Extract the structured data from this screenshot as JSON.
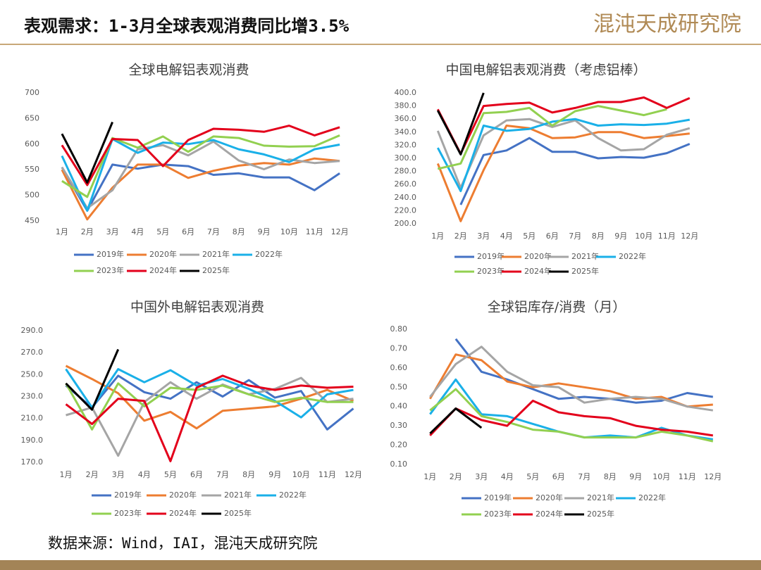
{
  "header": {
    "title": "表观需求：1-3月全球表观消费同比增3.5%",
    "logo": "混沌天成研究院"
  },
  "source": "数据来源：Wind，IAI，混沌天成研究院",
  "chart_data": [
    {
      "type": "line",
      "title": "全球电解铝表观消费",
      "categories": [
        "1月",
        "2月",
        "3月",
        "4月",
        "5月",
        "6月",
        "7月",
        "8月",
        "9月",
        "10月",
        "11月",
        "12月"
      ],
      "ylim": [
        450,
        700
      ],
      "yticks": [
        450,
        500,
        550,
        600,
        650,
        700
      ],
      "series": [
        {
          "name": "2019年",
          "color": "#4472c4",
          "values": [
            555,
            470,
            560,
            552,
            560,
            557,
            540,
            543,
            535,
            535,
            510,
            543
          ]
        },
        {
          "name": "2020年",
          "color": "#ed7d31",
          "values": [
            550,
            453,
            515,
            560,
            560,
            534,
            548,
            558,
            563,
            560,
            572,
            567
          ]
        },
        {
          "name": "2021年",
          "color": "#a5a5a5",
          "values": [
            555,
            475,
            510,
            590,
            598,
            578,
            605,
            568,
            551,
            570,
            563,
            567
          ]
        },
        {
          "name": "2022年",
          "color": "#1ab0e8",
          "values": [
            577,
            470,
            610,
            583,
            603,
            600,
            608,
            590,
            580,
            565,
            590,
            599
          ]
        },
        {
          "name": "2023年",
          "color": "#92d050",
          "values": [
            528,
            497,
            612,
            593,
            615,
            585,
            615,
            612,
            597,
            595,
            596,
            617
          ]
        },
        {
          "name": "2024年",
          "color": "#e3001b",
          "values": [
            598,
            520,
            610,
            608,
            557,
            608,
            630,
            628,
            624,
            636,
            617,
            633
          ]
        },
        {
          "name": "2025年",
          "color": "#000000",
          "values": [
            620,
            525,
            643,
            null,
            null,
            null,
            null,
            null,
            null,
            null,
            null,
            null
          ]
        }
      ]
    },
    {
      "type": "line",
      "title": "中国电解铝表观消费（考虑铝棒）",
      "categories": [
        "1月",
        "2月",
        "3月",
        "4月",
        "5月",
        "6月",
        "7月",
        "8月",
        "9月",
        "10月",
        "11月",
        "12月"
      ],
      "ylim": [
        200,
        400
      ],
      "yticks": [
        {
          "value": 200,
          "label": "200.0"
        },
        {
          "value": 220,
          "label": "220.0"
        },
        {
          "value": 240,
          "label": "240.0"
        },
        {
          "value": 260,
          "label": "260.0"
        },
        {
          "value": 280,
          "label": "280.0"
        },
        {
          "value": 300,
          "label": "300.0"
        },
        {
          "value": 320,
          "label": "320.0"
        },
        {
          "value": 340,
          "label": "340.0"
        },
        {
          "value": 360,
          "label": "360.0"
        },
        {
          "value": 380,
          "label": "380.0"
        },
        {
          "value": 400,
          "label": "400.0"
        }
      ],
      "series": [
        {
          "name": "2019年",
          "color": "#4472c4",
          "values": [
            null,
            229,
            305,
            312,
            331,
            310,
            310,
            300,
            302,
            301,
            308,
            322
          ]
        },
        {
          "name": "2020年",
          "color": "#ed7d31",
          "values": [
            292,
            204,
            282,
            350,
            346,
            331,
            332,
            340,
            340,
            331,
            334,
            338
          ]
        },
        {
          "name": "2021年",
          "color": "#a5a5a5",
          "values": [
            342,
            255,
            335,
            358,
            360,
            348,
            358,
            331,
            312,
            314,
            336,
            346
          ]
        },
        {
          "name": "2022年",
          "color": "#1ab0e8",
          "values": [
            316,
            250,
            350,
            342,
            345,
            356,
            360,
            350,
            352,
            351,
            353,
            359
          ]
        },
        {
          "name": "2023年",
          "color": "#92d050",
          "values": [
            284,
            292,
            369,
            371,
            377,
            350,
            372,
            380,
            373,
            366,
            375,
            null
          ]
        },
        {
          "name": "2024年",
          "color": "#e3001b",
          "values": [
            375,
            307,
            380,
            383,
            385,
            370,
            377,
            386,
            386,
            393,
            377,
            392
          ]
        },
        {
          "name": "2025年",
          "color": "#000000",
          "values": [
            373,
            306,
            400,
            null,
            null,
            null,
            null,
            null,
            null,
            null,
            null,
            null
          ]
        }
      ]
    },
    {
      "type": "line",
      "title": "中国外电解铝表观消费",
      "categories": [
        "1月",
        "2月",
        "3月",
        "4月",
        "5月",
        "6月",
        "7月",
        "8月",
        "9月",
        "10月",
        "11月",
        "12月"
      ],
      "ylim": [
        170,
        290
      ],
      "yticks": [
        {
          "value": 170,
          "label": "170.0"
        },
        {
          "value": 190,
          "label": "190.0"
        },
        {
          "value": 210,
          "label": "210.0"
        },
        {
          "value": 230,
          "label": "230.0"
        },
        {
          "value": 250,
          "label": "250.0"
        },
        {
          "value": 270,
          "label": "270.0"
        },
        {
          "value": 290,
          "label": "290.0"
        }
      ],
      "series": [
        {
          "name": "2019年",
          "color": "#4472c4",
          "values": [
            240,
            220,
            249,
            234,
            228,
            243,
            230,
            245,
            229,
            235,
            200,
            219
          ]
        },
        {
          "name": "2020年",
          "color": "#ed7d31",
          "values": [
            258,
            246,
            233,
            208,
            216,
            201,
            217,
            219,
            221,
            228,
            236,
            226
          ]
        },
        {
          "name": "2021年",
          "color": "#a5a5a5",
          "values": [
            213,
            220,
            176,
            225,
            243,
            228,
            241,
            232,
            237,
            247,
            225,
            228
          ]
        },
        {
          "name": "2022年",
          "color": "#1ab0e8",
          "values": [
            255,
            220,
            255,
            243,
            254,
            240,
            246,
            237,
            226,
            211,
            232,
            236
          ]
        },
        {
          "name": "2023年",
          "color": "#92d050",
          "values": [
            242,
            200,
            242,
            221,
            238,
            236,
            240,
            232,
            225,
            229,
            225,
            225
          ]
        },
        {
          "name": "2024年",
          "color": "#e3001b",
          "values": [
            223,
            205,
            228,
            226,
            171,
            238,
            249,
            240,
            236,
            240,
            238,
            239
          ]
        },
        {
          "name": "2025年",
          "color": "#000000",
          "values": [
            242,
            218,
            273,
            null,
            null,
            null,
            null,
            null,
            null,
            null,
            null,
            null
          ]
        }
      ]
    },
    {
      "type": "line",
      "title": "全球铝库存/消费（月）",
      "categories": [
        "1月",
        "2月",
        "3月",
        "4月",
        "5月",
        "6月",
        "7月",
        "8月",
        "9月",
        "10月",
        "11月",
        "12月"
      ],
      "ylim": [
        0.1,
        0.8
      ],
      "yticks": [
        {
          "value": 0.1,
          "label": "0.10"
        },
        {
          "value": 0.2,
          "label": "0.20"
        },
        {
          "value": 0.3,
          "label": "0.30"
        },
        {
          "value": 0.4,
          "label": "0.40"
        },
        {
          "value": 0.5,
          "label": "0.50"
        },
        {
          "value": 0.6,
          "label": "0.60"
        },
        {
          "value": 0.7,
          "label": "0.70"
        },
        {
          "value": 0.8,
          "label": "0.80"
        }
      ],
      "series": [
        {
          "name": "2019年",
          "color": "#4472c4",
          "values": [
            null,
            0.75,
            0.58,
            0.54,
            0.49,
            0.44,
            0.45,
            0.44,
            0.42,
            0.43,
            0.47,
            0.45
          ]
        },
        {
          "name": "2020年",
          "color": "#ed7d31",
          "values": [
            0.44,
            0.67,
            0.64,
            0.53,
            0.5,
            0.52,
            0.5,
            0.48,
            0.44,
            0.45,
            0.4,
            0.41
          ]
        },
        {
          "name": "2021年",
          "color": "#a5a5a5",
          "values": [
            0.45,
            0.62,
            0.71,
            0.58,
            0.51,
            0.5,
            0.42,
            0.44,
            0.45,
            0.44,
            0.4,
            0.38
          ]
        },
        {
          "name": "2022年",
          "color": "#1ab0e8",
          "values": [
            0.36,
            0.54,
            0.36,
            0.35,
            0.31,
            0.27,
            0.24,
            0.25,
            0.24,
            0.29,
            0.25,
            0.23
          ]
        },
        {
          "name": "2023年",
          "color": "#92d050",
          "values": [
            0.38,
            0.49,
            0.35,
            0.32,
            0.28,
            0.27,
            0.24,
            0.24,
            0.24,
            0.27,
            0.25,
            0.22
          ]
        },
        {
          "name": "2024年",
          "color": "#e3001b",
          "values": [
            0.25,
            0.39,
            0.33,
            0.3,
            0.43,
            0.37,
            0.35,
            0.34,
            0.3,
            0.28,
            0.27,
            0.25
          ]
        },
        {
          "name": "2025年",
          "color": "#000000",
          "values": [
            0.26,
            0.39,
            0.29,
            null,
            null,
            null,
            null,
            null,
            null,
            null,
            null,
            null
          ]
        }
      ]
    }
  ]
}
